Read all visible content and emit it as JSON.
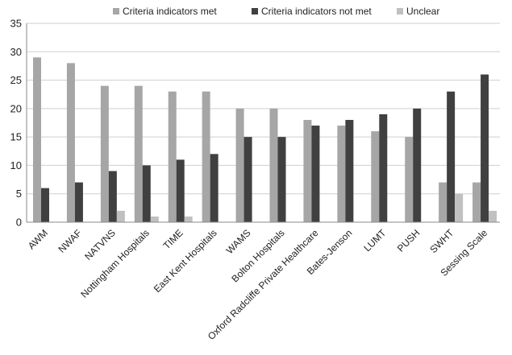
{
  "chart_data": {
    "type": "bar",
    "title": "",
    "xlabel": "",
    "ylabel": "",
    "ylim": [
      0,
      35
    ],
    "yticks": [
      0,
      5,
      10,
      15,
      20,
      25,
      30,
      35
    ],
    "grid": true,
    "legend_position": "top",
    "categories": [
      "AWM",
      "NWAF",
      "NATVNS",
      "Nottingham Hospitals",
      "TIME",
      "East Kent Hospitals",
      "WAMS",
      "Bolton Hospitals",
      "Oxford Radcliffe Private Healthcare",
      "Bates-Jenson",
      "LUMT",
      "PUSH",
      "SWHT",
      "Sessing Scale"
    ],
    "series": [
      {
        "name": "Criteria indicators met",
        "color": "#a6a6a6",
        "values": [
          29,
          28,
          24,
          24,
          23,
          23,
          20,
          20,
          18,
          17,
          16,
          15,
          7,
          7
        ]
      },
      {
        "name": "Criteria indicators not met",
        "color": "#404040",
        "values": [
          6,
          7,
          9,
          10,
          11,
          12,
          15,
          15,
          17,
          18,
          19,
          20,
          23,
          26
        ]
      },
      {
        "name": "Unclear",
        "color": "#c0c0c0",
        "values": [
          0,
          0,
          2,
          1,
          1,
          0,
          0,
          0,
          0,
          0,
          0,
          0,
          5,
          2
        ]
      }
    ]
  }
}
